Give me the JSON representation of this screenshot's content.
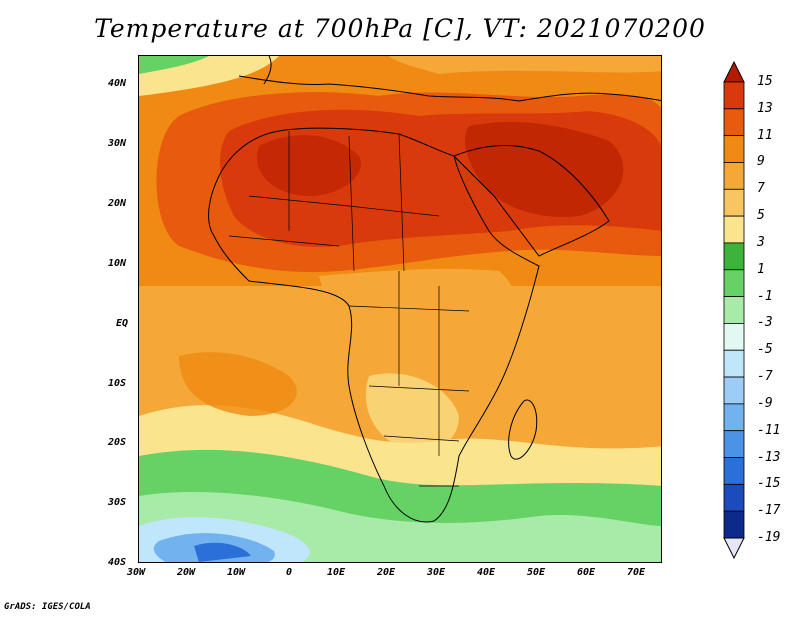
{
  "title": "Temperature at 700hPa [C], VT: 2021070200",
  "footer": "GrADS: IGES/COLA",
  "lat_labels": [
    "40N",
    "30N",
    "20N",
    "10N",
    "EQ",
    "10S",
    "20S",
    "30S",
    "40S"
  ],
  "lon_labels": [
    "30W",
    "20W",
    "10W",
    "0",
    "10E",
    "20E",
    "30E",
    "40E",
    "50E",
    "60E",
    "70E"
  ],
  "colorbar": {
    "labels": [
      "15",
      "13",
      "11",
      "9",
      "7",
      "5",
      "3",
      "1",
      "-1",
      "-3",
      "-5",
      "-7",
      "-9",
      "-11",
      "-13",
      "-15",
      "-17",
      "-19"
    ],
    "colors": [
      "#b31a00",
      "#d93a0b",
      "#e85a0d",
      "#f08a12",
      "#f5a838",
      "#f8c660",
      "#fbe48e",
      "#3cb43c",
      "#66d266",
      "#a8eaa8",
      "#e2f8f2",
      "#bfe6fb",
      "#9dcdf6",
      "#72b2ef",
      "#4a93e6",
      "#2b6fd8",
      "#1c4bbd",
      "#0c2a8a",
      "#05135e"
    ]
  },
  "map": {
    "units": "C",
    "lon_range": [
      -30,
      75
    ],
    "lat_range": [
      -40,
      45
    ]
  }
}
